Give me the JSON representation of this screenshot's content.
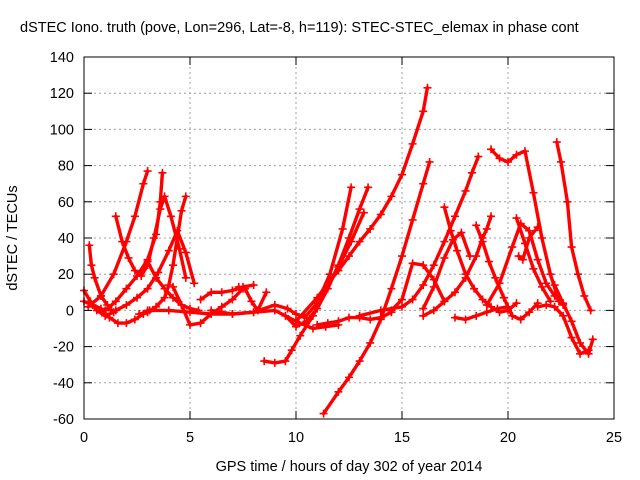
{
  "chart_data": {
    "type": "scatter",
    "title": "dSTEC Iono. truth (pove, Lon=296, Lat=-8, h=119): STEC-STEC_elemax in phase cont",
    "xlabel": "GPS time / hours of day 302 of year 2014",
    "ylabel": "dSTEC  / TECUs",
    "xlim": [
      0,
      25
    ],
    "ylim": [
      -60,
      140
    ],
    "xticks": [
      0,
      5,
      10,
      15,
      20,
      25
    ],
    "yticks": [
      -60,
      -40,
      -20,
      0,
      20,
      40,
      60,
      80,
      100,
      120,
      140
    ],
    "grid": true,
    "color": "#ff0000",
    "marker": "plus",
    "series": [
      {
        "x": [
          0.0,
          0.3,
          0.6,
          1.0,
          1.4
        ],
        "y": [
          11,
          5,
          0,
          -3,
          -1
        ]
      },
      {
        "x": [
          0.25,
          0.35,
          0.5,
          0.8,
          1.1,
          1.3
        ],
        "y": [
          36,
          25,
          18,
          8,
          3,
          0
        ]
      },
      {
        "x": [
          0.0,
          0.4,
          0.8,
          1.2,
          1.6,
          2.0,
          2.4,
          2.8,
          3.1
        ],
        "y": [
          5,
          3,
          1,
          -4,
          -7,
          -7,
          -5,
          -2,
          0
        ]
      },
      {
        "x": [
          1.5,
          1.8,
          2.1,
          2.4,
          2.7,
          3.0,
          3.3,
          3.6,
          3.8,
          4.1,
          4.5,
          4.8
        ],
        "y": [
          52,
          38,
          29,
          22,
          19,
          25,
          40,
          56,
          63,
          52,
          34,
          18
        ]
      },
      {
        "x": [
          0.2,
          0.8,
          1.4,
          2.0,
          2.4,
          2.8,
          3.0
        ],
        "y": [
          2,
          8,
          20,
          38,
          52,
          70,
          77
        ]
      },
      {
        "x": [
          3.0,
          3.4,
          3.8,
          4.2,
          4.6,
          5.0,
          5.4
        ],
        "y": [
          27,
          18,
          12,
          7,
          3,
          1,
          0
        ]
      },
      {
        "x": [
          3.7,
          3.6,
          3.4,
          3.0,
          2.5,
          2.0,
          1.5,
          1.0
        ],
        "y": [
          76,
          60,
          42,
          28,
          19,
          12,
          5,
          0
        ]
      },
      {
        "x": [
          4.8,
          4.6,
          4.4,
          4.2,
          4.0,
          3.8,
          3.4,
          3.0,
          2.6
        ],
        "y": [
          63,
          55,
          40,
          25,
          14,
          7,
          2,
          -1,
          -2
        ]
      },
      {
        "x": [
          1.5,
          2.0,
          2.5,
          3.0,
          3.5,
          4.0,
          4.4,
          4.8,
          5.2
        ],
        "y": [
          0,
          3,
          7,
          12,
          21,
          33,
          44,
          32,
          15
        ]
      },
      {
        "x": [
          4.2,
          4.6,
          5.0,
          5.5,
          6.0,
          6.5,
          7.0,
          7.5
        ],
        "y": [
          13,
          3,
          -8,
          -7,
          -2,
          2,
          6,
          12
        ]
      },
      {
        "x": [
          5.5,
          6.0,
          6.5,
          7.0,
          7.5,
          8.0
        ],
        "y": [
          6,
          10,
          10,
          11,
          13,
          14
        ]
      },
      {
        "x": [
          7.3,
          7.6,
          7.9,
          8.2,
          8.6
        ],
        "y": [
          13,
          12,
          5,
          0,
          10
        ]
      },
      {
        "x": [
          3.0,
          4.0,
          5.0,
          6.0,
          7.0,
          8.0,
          9.0,
          10.0,
          10.8,
          11.4,
          12.0
        ],
        "y": [
          0,
          0,
          -1,
          -2,
          -2,
          -1,
          0,
          -6,
          -10,
          -9,
          -8
        ]
      },
      {
        "x": [
          6.0,
          7.0,
          8.0,
          9.0,
          9.6,
          10.0,
          10.4,
          11.0,
          11.6,
          12.2,
          12.6
        ],
        "y": [
          0,
          -2,
          -1,
          3,
          1,
          -2,
          -4,
          4,
          20,
          45,
          68
        ]
      },
      {
        "x": [
          8.5,
          9.0,
          9.5,
          9.8,
          10.2,
          10.8,
          11.4,
          12.0,
          12.6,
          13.2
        ],
        "y": [
          -28,
          -29,
          -28,
          -22,
          -14,
          -3,
          12,
          24,
          38,
          54
        ]
      },
      {
        "x": [
          9.5,
          10.0,
          10.5,
          11.0,
          11.5,
          12.0,
          12.5,
          13.0,
          13.4
        ],
        "y": [
          -3,
          -9,
          -6,
          1,
          12,
          25,
          40,
          56,
          68
        ]
      },
      {
        "x": [
          10.0,
          11.0,
          11.5,
          12.0,
          12.5,
          13.0,
          13.5,
          14.0,
          14.5,
          15.0,
          15.5,
          16.0,
          16.2
        ],
        "y": [
          -6,
          7,
          15,
          22,
          30,
          38,
          45,
          53,
          63,
          75,
          92,
          110,
          123
        ]
      },
      {
        "x": [
          11.3,
          12.0,
          12.5,
          13.0,
          13.5,
          14.0,
          14.5,
          15.0,
          15.5,
          16.0,
          16.3
        ],
        "y": [
          -57,
          -45,
          -37,
          -28,
          -18,
          -5,
          12,
          30,
          50,
          70,
          82
        ]
      },
      {
        "x": [
          11.0,
          11.5,
          12.0,
          12.5,
          13.0,
          13.5,
          14.0,
          14.5
        ],
        "y": [
          -8,
          -7,
          -6,
          -4,
          -4,
          -5,
          -4,
          -1
        ]
      },
      {
        "x": [
          13.0,
          14.0,
          15.0,
          15.5,
          16.0,
          16.5,
          17.0,
          17.5,
          18.0,
          18.3,
          18.6
        ],
        "y": [
          -3,
          0,
          2,
          6,
          14,
          25,
          38,
          52,
          66,
          76,
          85
        ]
      },
      {
        "x": [
          14.5,
          15.0,
          15.5,
          16.0,
          16.5,
          17.0
        ],
        "y": [
          0,
          6,
          26,
          25,
          17,
          5
        ]
      },
      {
        "x": [
          16.0,
          16.5,
          17.0,
          17.4,
          17.8,
          18.2
        ],
        "y": [
          1,
          13,
          29,
          39,
          43,
          30
        ]
      },
      {
        "x": [
          17.0,
          17.3,
          17.6,
          18.0,
          18.4,
          18.8,
          19.2,
          19.6,
          20.0,
          20.4
        ],
        "y": [
          57,
          44,
          33,
          20,
          12,
          6,
          2,
          -1,
          0,
          4
        ]
      },
      {
        "x": [
          16.0,
          16.5,
          17.0,
          17.5,
          18.0,
          18.5,
          18.8,
          19.0,
          19.2
        ],
        "y": [
          -3,
          0,
          5,
          10,
          18,
          30,
          40,
          45,
          52
        ]
      },
      {
        "x": [
          18.5,
          18.8,
          19.1,
          19.4,
          19.8,
          20.2,
          20.6,
          21.0,
          21.4
        ],
        "y": [
          47,
          38,
          27,
          18,
          7,
          -3,
          -5,
          -1,
          4
        ]
      },
      {
        "x": [
          19.2,
          19.6,
          20.0,
          20.4,
          20.8,
          21.2,
          21.6,
          22.0,
          22.4
        ],
        "y": [
          89,
          84,
          82,
          86,
          88,
          65,
          40,
          20,
          5
        ]
      },
      {
        "x": [
          19.0,
          19.6,
          20.2,
          20.6,
          21.0,
          21.4,
          21.8,
          22.2,
          22.6
        ],
        "y": [
          3,
          15,
          35,
          48,
          44,
          28,
          15,
          8,
          3
        ]
      },
      {
        "x": [
          20.4,
          20.8,
          21.2,
          21.6,
          22.0
        ],
        "y": [
          51,
          37,
          23,
          13,
          5
        ]
      },
      {
        "x": [
          20.5,
          20.7,
          21.0,
          21.4
        ],
        "y": [
          30,
          28,
          40,
          46
        ]
      },
      {
        "x": [
          22.3,
          22.5,
          22.8,
          23.0,
          23.3,
          23.6,
          23.9
        ],
        "y": [
          93,
          82,
          60,
          35,
          20,
          8,
          0
        ]
      },
      {
        "x": [
          21.4,
          21.8,
          22.2,
          22.6,
          23.0,
          23.4,
          23.8
        ],
        "y": [
          2,
          3,
          2,
          -3,
          -15,
          -24,
          -22
        ]
      },
      {
        "x": [
          22.2,
          22.6,
          23.0,
          23.4,
          23.8,
          24.0
        ],
        "y": [
          14,
          4,
          -6,
          -18,
          -24,
          -16
        ]
      },
      {
        "x": [
          17.5,
          18.0,
          18.5,
          19.0,
          19.5,
          20.0
        ],
        "y": [
          -4,
          -5,
          -3,
          -1,
          1,
          2
        ]
      }
    ]
  }
}
